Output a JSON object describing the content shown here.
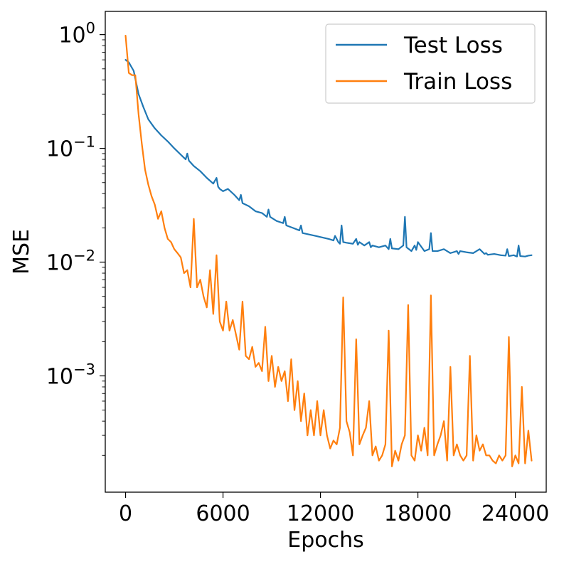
{
  "chart_data": {
    "type": "line",
    "title": "",
    "xlabel": "Epochs",
    "ylabel": "MSE",
    "xscale": "linear",
    "yscale": "log",
    "xlim": [
      -1250,
      25900
    ],
    "ylim": [
      9.5e-05,
      1.6
    ],
    "grid": false,
    "legend_position": "top-right",
    "x_ticks": [
      0,
      6000,
      12000,
      18000,
      24000
    ],
    "x_tick_labels": [
      "0",
      "6000",
      "12000",
      "18000",
      "24000"
    ],
    "y_ticks": [
      {
        "value": 1,
        "base": "10",
        "exponent": "0"
      },
      {
        "value": 0.1,
        "base": "10",
        "exponent": "−1"
      },
      {
        "value": 0.01,
        "base": "10",
        "exponent": "−2"
      },
      {
        "value": 0.001,
        "base": "10",
        "exponent": "−3"
      }
    ],
    "series": [
      {
        "name": "Test Loss",
        "color": "#1f77b4",
        "x": [
          0,
          200,
          500,
          800,
          1100,
          1400,
          1800,
          2200,
          2600,
          3000,
          3400,
          3700,
          3800,
          3900,
          4200,
          4600,
          5000,
          5400,
          5600,
          5700,
          5800,
          6000,
          6300,
          6700,
          7000,
          7100,
          7200,
          7600,
          8000,
          8400,
          8700,
          8800,
          8900,
          9300,
          9700,
          9800,
          9900,
          10300,
          10700,
          10800,
          10900,
          11300,
          11700,
          12100,
          12500,
          12800,
          12900,
          13100,
          13200,
          13300,
          13400,
          13600,
          14000,
          14200,
          14300,
          14400,
          14700,
          15000,
          15100,
          15200,
          15600,
          16000,
          16200,
          16300,
          16400,
          16800,
          17100,
          17200,
          17300,
          17600,
          17800,
          17900,
          18000,
          18400,
          18700,
          18800,
          18900,
          19200,
          19600,
          20000,
          20400,
          20500,
          20600,
          21000,
          21400,
          21800,
          22100,
          22200,
          22300,
          22700,
          23100,
          23400,
          23500,
          23600,
          23900,
          24100,
          24200,
          24300,
          24600,
          24800,
          25000
        ],
        "values": [
          0.6,
          0.57,
          0.48,
          0.3,
          0.23,
          0.18,
          0.15,
          0.13,
          0.115,
          0.1,
          0.088,
          0.08,
          0.09,
          0.078,
          0.07,
          0.063,
          0.055,
          0.049,
          0.055,
          0.046,
          0.044,
          0.042,
          0.044,
          0.039,
          0.035,
          0.039,
          0.033,
          0.031,
          0.028,
          0.027,
          0.025,
          0.029,
          0.025,
          0.023,
          0.022,
          0.025,
          0.021,
          0.02,
          0.019,
          0.021,
          0.018,
          0.0175,
          0.017,
          0.0165,
          0.016,
          0.0155,
          0.017,
          0.015,
          0.0145,
          0.021,
          0.015,
          0.0148,
          0.0145,
          0.016,
          0.0142,
          0.015,
          0.014,
          0.015,
          0.0135,
          0.014,
          0.0135,
          0.014,
          0.013,
          0.016,
          0.0132,
          0.013,
          0.014,
          0.025,
          0.0135,
          0.0125,
          0.014,
          0.0128,
          0.015,
          0.0125,
          0.013,
          0.018,
          0.0125,
          0.0125,
          0.013,
          0.012,
          0.0125,
          0.0118,
          0.0125,
          0.0122,
          0.012,
          0.013,
          0.0118,
          0.012,
          0.0116,
          0.0118,
          0.0115,
          0.0114,
          0.013,
          0.0113,
          0.0115,
          0.0112,
          0.014,
          0.0113,
          0.0112,
          0.0114,
          0.0115
        ]
      },
      {
        "name": "Train Loss",
        "color": "#ff7f0e",
        "x": [
          0,
          200,
          400,
          600,
          800,
          1000,
          1200,
          1400,
          1600,
          1800,
          2000,
          2200,
          2400,
          2600,
          2800,
          3000,
          3200,
          3400,
          3600,
          3800,
          4000,
          4200,
          4400,
          4600,
          4800,
          5000,
          5200,
          5400,
          5600,
          5800,
          6000,
          6200,
          6400,
          6600,
          6800,
          7000,
          7200,
          7400,
          7600,
          7800,
          8000,
          8200,
          8400,
          8600,
          8800,
          9000,
          9200,
          9400,
          9600,
          9800,
          10000,
          10200,
          10400,
          10600,
          10800,
          11000,
          11200,
          11400,
          11600,
          11800,
          12000,
          12200,
          12400,
          12600,
          12800,
          13000,
          13200,
          13400,
          13600,
          13800,
          14000,
          14200,
          14400,
          14600,
          14800,
          15000,
          15200,
          15400,
          15600,
          15800,
          16000,
          16200,
          16400,
          16600,
          16800,
          17000,
          17200,
          17400,
          17600,
          17800,
          18000,
          18200,
          18400,
          18600,
          18800,
          19000,
          19200,
          19400,
          19600,
          19800,
          20000,
          20200,
          20400,
          20600,
          20800,
          21000,
          21200,
          21400,
          21600,
          21800,
          22000,
          22200,
          22400,
          22600,
          22800,
          23000,
          23200,
          23400,
          23600,
          23800,
          24000,
          24200,
          24400,
          24600,
          24800,
          25000
        ],
        "values": [
          0.98,
          0.46,
          0.44,
          0.44,
          0.2,
          0.11,
          0.065,
          0.048,
          0.038,
          0.032,
          0.024,
          0.028,
          0.02,
          0.016,
          0.015,
          0.013,
          0.012,
          0.011,
          0.008,
          0.0085,
          0.006,
          0.024,
          0.006,
          0.007,
          0.005,
          0.004,
          0.0085,
          0.0035,
          0.0115,
          0.003,
          0.0025,
          0.0045,
          0.0025,
          0.0031,
          0.0023,
          0.0017,
          0.0045,
          0.0015,
          0.0014,
          0.0018,
          0.0012,
          0.0013,
          0.0011,
          0.0027,
          0.0009,
          0.0015,
          0.0008,
          0.0012,
          0.0009,
          0.0011,
          0.0006,
          0.0014,
          0.0005,
          0.0009,
          0.0004,
          0.0007,
          0.0003,
          0.0005,
          0.0003,
          0.0006,
          0.0003,
          0.0005,
          0.0003,
          0.00023,
          0.00027,
          0.00025,
          0.00035,
          0.0049,
          0.0004,
          0.00032,
          0.0002,
          0.0021,
          0.00025,
          0.0003,
          0.00035,
          0.0006,
          0.0002,
          0.00024,
          0.00018,
          0.0002,
          0.00025,
          0.0025,
          0.00016,
          0.00022,
          0.00018,
          0.00025,
          0.0003,
          0.0042,
          0.0002,
          0.00018,
          0.0003,
          0.00022,
          0.00035,
          0.0002,
          0.0051,
          0.0002,
          0.00025,
          0.0003,
          0.0004,
          0.00018,
          0.0012,
          0.0002,
          0.00025,
          0.0002,
          0.00018,
          0.0002,
          0.0015,
          0.00018,
          0.0003,
          0.00022,
          0.00025,
          0.0002,
          0.0002,
          0.00018,
          0.00017,
          0.0002,
          0.00018,
          0.0002,
          0.0022,
          0.00016,
          0.0002,
          0.00017,
          0.0008,
          0.00017,
          0.00033,
          0.00018
        ]
      }
    ]
  }
}
